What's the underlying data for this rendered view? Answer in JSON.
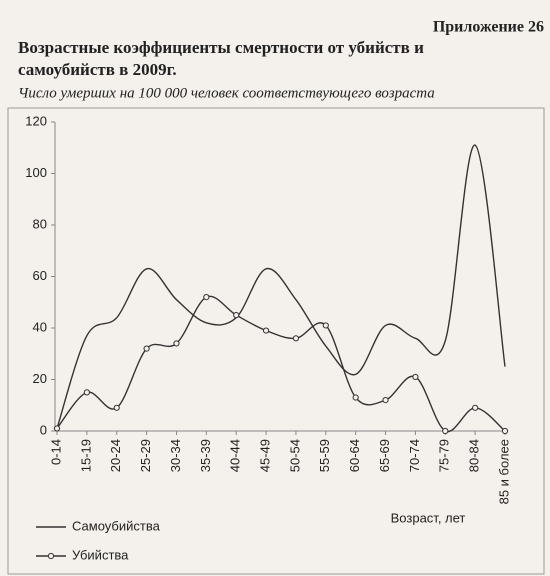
{
  "header": "Приложение 26",
  "chart_data": {
    "type": "line",
    "title": "Возрастные коэффициенты смертности от убийств и самоубийств в 2009г.",
    "subtitle": "Число умерших на 100 000 человек соответствующего возраста",
    "x_label": "Возраст, лет",
    "categories": [
      "0-14",
      "15-19",
      "20-24",
      "25-29",
      "30-34",
      "35-39",
      "40-44",
      "45-49",
      "50-54",
      "55-59",
      "60-64",
      "65-69",
      "70-74",
      "75-79",
      "80-84",
      "85 и более"
    ],
    "series": [
      {
        "name": "Самоубийства",
        "color": "#333333",
        "marker": false,
        "values": [
          1,
          37,
          44,
          63,
          51,
          42,
          44,
          63,
          51,
          33,
          22,
          41,
          36,
          35,
          111,
          25
        ]
      },
      {
        "name": "Убийства",
        "color": "#333333",
        "marker": true,
        "values": [
          1,
          15,
          9,
          32,
          34,
          52,
          45,
          39,
          36,
          41,
          13,
          12,
          21,
          0,
          9,
          0
        ]
      }
    ],
    "ylim": [
      0,
      120
    ],
    "yticks": [
      0,
      20,
      40,
      60,
      80,
      100,
      120
    ],
    "grid": false
  }
}
